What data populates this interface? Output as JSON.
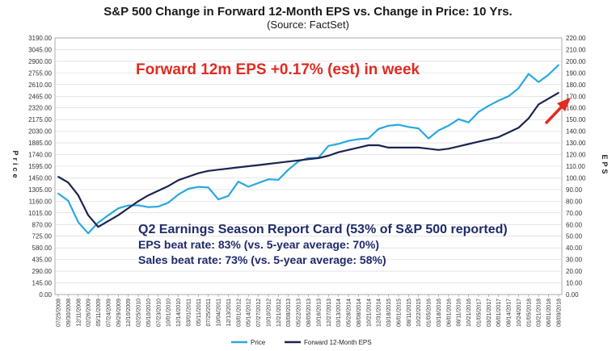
{
  "chart_data": {
    "type": "line",
    "title": "S&P 500 Change in Forward 12-Month EPS vs. Change in Price: 10 Yrs.",
    "subtitle": "(Source: FactSet)",
    "ylabel_left": "Price",
    "ylabel_right": "EPS",
    "ylim_left": [
      0,
      3190
    ],
    "ylim_right": [
      0,
      220
    ],
    "yticks_left": [
      "3190.00",
      "3045.00",
      "2900.00",
      "2755.00",
      "2610.00",
      "2465.00",
      "2320.00",
      "2175.00",
      "2030.00",
      "1885.00",
      "1740.00",
      "1595.00",
      "1450.00",
      "1305.00",
      "1160.00",
      "1015.00",
      "870.00",
      "725.00",
      "580.00",
      "435.00",
      "290.00",
      "145.00",
      "0.00"
    ],
    "yticks_right": [
      "220.00",
      "210.00",
      "200.00",
      "190.00",
      "180.00",
      "170.00",
      "160.00",
      "150.00",
      "140.00",
      "130.00",
      "120.00",
      "110.00",
      "100.00",
      "90.00",
      "80.00",
      "70.00",
      "60.00",
      "50.00",
      "40.00",
      "30.00",
      "20.00",
      "10.00",
      "0.00"
    ],
    "xticks": [
      "07/25/2008",
      "09/30/2008",
      "12/11/2008",
      "02/26/2009",
      "05/11/2009",
      "07/24/2009",
      "09/29/2009",
      "12/10/2009",
      "02/25/2010",
      "05/10/2010",
      "07/23/2010",
      "10/01/2010",
      "12/14/2010",
      "03/01/2011",
      "05/11/2011",
      "07/25/2011",
      "10/04/2011",
      "12/13/2011",
      "03/01/2012",
      "05/14/2012",
      "07/27/2012",
      "10/10/2012",
      "12/21/2012",
      "03/08/2013",
      "05/22/2013",
      "08/05/2013",
      "10/16/2013",
      "12/27/2013",
      "03/13/2014",
      "05/28/2014",
      "08/08/2014",
      "10/21/2014",
      "12/31/2014",
      "03/18/2015",
      "06/01/2015",
      "08/11/2015",
      "10/22/2015",
      "01/05/2016",
      "03/18/2016",
      "06/01/2016",
      "08/11/2016",
      "10/21/2016",
      "01/05/2017",
      "03/21/2017",
      "06/01/2017",
      "08/14/2017",
      "10/24/2017",
      "01/05/2018",
      "03/21/2018",
      "06/01/2018",
      "08/09/2018"
    ],
    "series": [
      {
        "name": "Price",
        "color": "#29a8e0",
        "axis": "left",
        "values": [
          1257,
          1165,
          900,
          760,
          895,
          985,
          1071,
          1107,
          1109,
          1086,
          1093,
          1142,
          1243,
          1314,
          1338,
          1331,
          1183,
          1226,
          1403,
          1340,
          1386,
          1432,
          1426,
          1552,
          1655,
          1697,
          1699,
          1848,
          1873,
          1910,
          1931,
          1941,
          2058,
          2099,
          2111,
          2084,
          2065,
          1940,
          2040,
          2099,
          2180,
          2140,
          2270,
          2345,
          2411,
          2465,
          2565,
          2743,
          2641,
          2734,
          2853
        ]
      },
      {
        "name": "Forward 12-Month EPS",
        "color": "#1c2450",
        "axis": "right",
        "values": [
          101,
          96,
          85,
          68,
          58,
          63,
          68,
          74,
          80,
          85,
          89,
          93,
          98,
          101,
          104,
          106,
          107,
          108,
          109,
          110,
          111,
          112,
          113,
          114,
          115,
          116,
          117,
          119,
          122,
          124,
          126,
          128,
          128,
          126,
          126,
          126,
          126,
          125,
          124,
          125,
          127,
          129,
          131,
          133,
          135,
          139,
          143,
          151,
          163,
          168,
          173
        ]
      }
    ],
    "annotations": {
      "headline": "Forward 12m EPS +0.17% (est) in week",
      "card_title": "Q2 Earnings Season Report Card (53% of S&P 500 reported)",
      "card_line1": "EPS beat rate: 83% (vs. 5-year average: 70%)",
      "card_line2": "Sales beat rate: 73% (vs. 5-year average: 58%)"
    },
    "colors": {
      "headline": "#e02b20",
      "card": "#1f2a6b",
      "arrow": "#e02b20",
      "grid": "#d4d4d4"
    },
    "legend_position": "bottom-center",
    "grid": true
  }
}
